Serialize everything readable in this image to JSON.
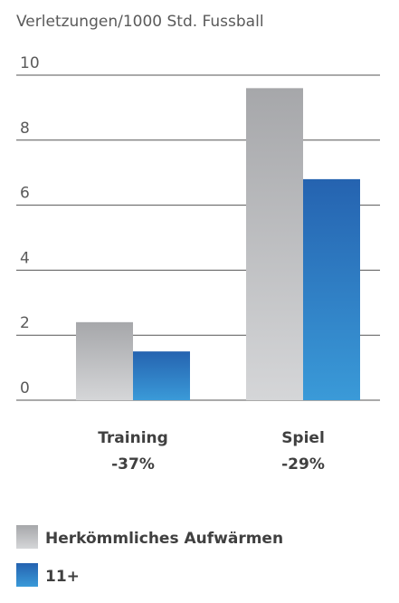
{
  "chart_data": {
    "type": "bar",
    "ylabel": "Verletzungen/1000 Std. Fussball",
    "ylim": [
      0,
      10
    ],
    "yticks": [
      0,
      2,
      4,
      6,
      8,
      10
    ],
    "grid": true,
    "legend_position": "bottom-left",
    "categories": [
      {
        "name": "Training",
        "change": "-37%"
      },
      {
        "name": "Spiel",
        "change": "-29%"
      }
    ],
    "series": [
      {
        "name": "Herkömmliches Aufwärmen",
        "values": [
          2.4,
          9.6
        ],
        "color_top": "#a6a7aa",
        "color_bottom": "#d5d6d8"
      },
      {
        "name": "11+",
        "values": [
          1.5,
          6.8
        ],
        "color_top": "#2563b0",
        "color_bottom": "#3a9ad8"
      }
    ],
    "colors": {
      "grid": "#555555",
      "text": "#5a5a5a",
      "label": "#404040"
    }
  }
}
